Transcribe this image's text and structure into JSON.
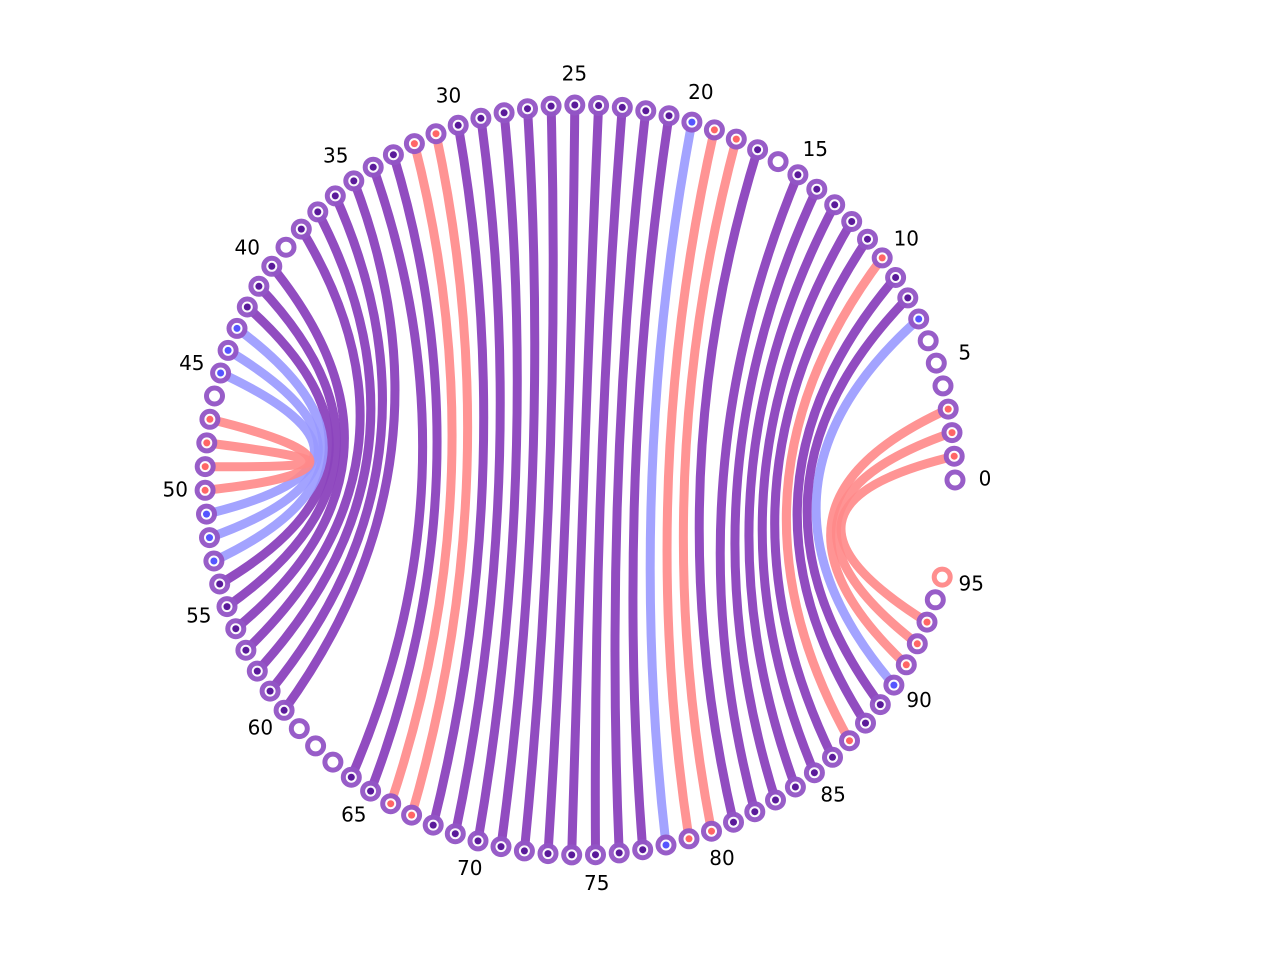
{
  "diagram": {
    "node_count": 96,
    "label_step": 5,
    "labels": [
      "0",
      "5",
      "10",
      "15",
      "20",
      "25",
      "30",
      "35",
      "40",
      "45",
      "50",
      "55",
      "60",
      "65",
      "70",
      "75",
      "80",
      "85",
      "90",
      "95"
    ],
    "colors": {
      "red": "#ff8888",
      "blue": "#9999ff",
      "purple": "#8b42bd",
      "node_ring": "#9355c6",
      "node_ring_outer": "#ff8888",
      "node_center_purple": "#5a1a9a",
      "node_center_red": "#ff6666",
      "node_center_blue": "#5555ff",
      "node_center_white": "#ffffff"
    },
    "chords": [
      {
        "from": 1,
        "to": 93,
        "color": "red"
      },
      {
        "from": 2,
        "to": 92,
        "color": "red"
      },
      {
        "from": 3,
        "to": 91,
        "color": "red"
      },
      {
        "from": 7,
        "to": 90,
        "color": "blue"
      },
      {
        "from": 8,
        "to": 89,
        "color": "purple"
      },
      {
        "from": 9,
        "to": 88,
        "color": "purple"
      },
      {
        "from": 10,
        "to": 87,
        "color": "red"
      },
      {
        "from": 11,
        "to": 86,
        "color": "purple"
      },
      {
        "from": 12,
        "to": 85,
        "color": "purple"
      },
      {
        "from": 13,
        "to": 84,
        "color": "purple"
      },
      {
        "from": 14,
        "to": 83,
        "color": "purple"
      },
      {
        "from": 15,
        "to": 82,
        "color": "purple"
      },
      {
        "from": 17,
        "to": 81,
        "color": "purple"
      },
      {
        "from": 18,
        "to": 80,
        "color": "red"
      },
      {
        "from": 19,
        "to": 79,
        "color": "red"
      },
      {
        "from": 20,
        "to": 78,
        "color": "blue"
      },
      {
        "from": 21,
        "to": 77,
        "color": "purple"
      },
      {
        "from": 22,
        "to": 76,
        "color": "purple"
      },
      {
        "from": 23,
        "to": 75,
        "color": "purple"
      },
      {
        "from": 24,
        "to": 74,
        "color": "purple"
      },
      {
        "from": 25,
        "to": 73,
        "color": "purple"
      },
      {
        "from": 26,
        "to": 72,
        "color": "purple"
      },
      {
        "from": 27,
        "to": 71,
        "color": "purple"
      },
      {
        "from": 28,
        "to": 70,
        "color": "purple"
      },
      {
        "from": 29,
        "to": 69,
        "color": "purple"
      },
      {
        "from": 30,
        "to": 68,
        "color": "purple"
      },
      {
        "from": 31,
        "to": 67,
        "color": "red"
      },
      {
        "from": 32,
        "to": 66,
        "color": "red"
      },
      {
        "from": 33,
        "to": 65,
        "color": "purple"
      },
      {
        "from": 34,
        "to": 64,
        "color": "purple"
      },
      {
        "from": 35,
        "to": 60,
        "color": "purple"
      },
      {
        "from": 36,
        "to": 59,
        "color": "purple"
      },
      {
        "from": 37,
        "to": 58,
        "color": "purple"
      },
      {
        "from": 38,
        "to": 57,
        "color": "purple"
      },
      {
        "from": 40,
        "to": 56,
        "color": "purple"
      },
      {
        "from": 41,
        "to": 55,
        "color": "purple"
      },
      {
        "from": 42,
        "to": 54,
        "color": "purple"
      },
      {
        "from": 43,
        "to": 53,
        "color": "blue"
      },
      {
        "from": 44,
        "to": 52,
        "color": "blue"
      },
      {
        "from": 45,
        "to": 51,
        "color": "blue"
      },
      {
        "from": 47,
        "to": 50,
        "color": "red"
      },
      {
        "from": 48,
        "to": 49,
        "color": "red"
      }
    ]
  }
}
